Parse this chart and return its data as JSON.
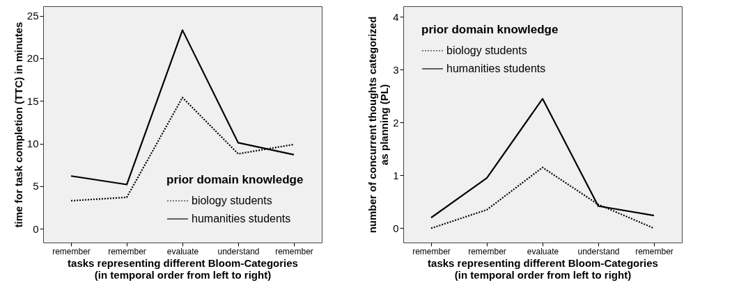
{
  "chart_data": [
    {
      "type": "line",
      "xlabel": "tasks representing different Bloom-Categories\n(in temporal order from left to right)",
      "ylabel": "time for task completion (TTC) in minutes",
      "legend_title": "prior domain knowledge",
      "legend": "bottom right",
      "grid": false,
      "categories": [
        "remember",
        "remember",
        "evaluate",
        "understand",
        "remember"
      ],
      "ylim": [
        -1.6,
        26.1
      ],
      "yticks": [
        0,
        5,
        10,
        15,
        20,
        25
      ],
      "series": [
        {
          "name": "biology students",
          "color": "#000000",
          "line_style": "dotted",
          "values": [
            3.3,
            3.7,
            15.4,
            8.8,
            9.9
          ]
        },
        {
          "name": "humanities students",
          "color": "#000000",
          "line_style": "solid",
          "values": [
            6.2,
            5.2,
            23.3,
            10.1,
            8.7
          ]
        }
      ]
    },
    {
      "type": "line",
      "xlabel": "tasks representing different Bloom-Categories\n(in temporal order from left to right)",
      "ylabel": "number of concurrent thoughts categorized\nas planning (PL)",
      "legend_title": "prior domain knowledge",
      "legend": "top left",
      "grid": false,
      "categories": [
        "remember",
        "remember",
        "evaluate",
        "understand",
        "remember"
      ],
      "ylim": [
        -0.27,
        4.2
      ],
      "yticks": [
        0,
        1,
        2,
        3,
        4
      ],
      "series": [
        {
          "name": "biology students",
          "color": "#000000",
          "line_style": "dotted",
          "values": [
            0.0,
            0.35,
            1.15,
            0.45,
            0.0
          ]
        },
        {
          "name": "humanities students",
          "color": "#000000",
          "line_style": "solid",
          "values": [
            0.2,
            0.95,
            2.45,
            0.42,
            0.24
          ]
        }
      ]
    }
  ]
}
